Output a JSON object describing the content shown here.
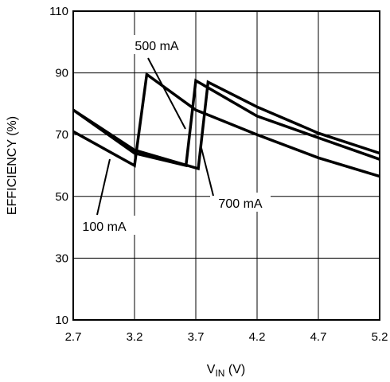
{
  "chart_data": {
    "type": "line",
    "title": "",
    "xlabel": "V",
    "xlabel_subscript": "IN",
    "xlabel_unit": " (V)",
    "ylabel": "EFFICIENCY (%)",
    "xlim": [
      2.7,
      5.2
    ],
    "ylim": [
      10,
      110
    ],
    "x_ticks": [
      2.7,
      3.2,
      3.7,
      4.2,
      4.7,
      5.2
    ],
    "x_tick_labels": [
      "2.7",
      "3.2",
      "3.7",
      "4.2",
      "4.7",
      "5.2"
    ],
    "y_ticks": [
      10,
      30,
      50,
      70,
      90,
      110
    ],
    "y_tick_labels": [
      "10",
      "30",
      "50",
      "70",
      "90",
      "110"
    ],
    "grid": true,
    "series": [
      {
        "name": "100 mA",
        "points": [
          [
            2.7,
            71
          ],
          [
            3.2,
            60
          ],
          [
            3.3,
            89.5
          ],
          [
            3.7,
            78
          ],
          [
            4.2,
            70
          ],
          [
            4.7,
            62.5
          ],
          [
            5.2,
            56.5
          ]
        ]
      },
      {
        "name": "500 mA",
        "points": [
          [
            2.7,
            78
          ],
          [
            3.2,
            64
          ],
          [
            3.62,
            60
          ],
          [
            3.7,
            87.5
          ],
          [
            4.2,
            76
          ],
          [
            4.7,
            69
          ],
          [
            5.2,
            62
          ]
        ]
      },
      {
        "name": "700 mA",
        "points": [
          [
            2.7,
            78
          ],
          [
            3.2,
            65
          ],
          [
            3.72,
            59
          ],
          [
            3.8,
            87
          ],
          [
            4.2,
            79
          ],
          [
            4.7,
            70.5
          ],
          [
            5.2,
            64
          ]
        ]
      }
    ],
    "annotations": [
      {
        "text": "500 mA",
        "target": [
          3.62,
          62
        ]
      },
      {
        "text": "100 mA",
        "target": [
          3.05,
          61.5
        ]
      },
      {
        "text": "700 mA",
        "target": [
          3.74,
          61
        ]
      }
    ]
  }
}
